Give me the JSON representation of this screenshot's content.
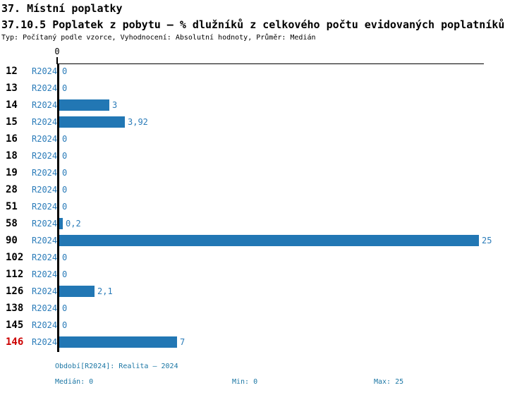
{
  "header": {
    "title": "37. Místní poplatky",
    "subtitle": "37.10.5 Poplatek z pobytu – % dlužníků z celkového počtu evidovaných poplatníků",
    "meta": "Typ: Počítaný podle vzorce, Vyhodnocení: Absolutní hodnoty, Průměr: Medián"
  },
  "chart_data": {
    "type": "bar",
    "orientation": "horizontal",
    "title": "37.10.5 Poplatek z pobytu – % dlužníků z celkového počtu evidovaných poplatníků",
    "categories": [
      "12",
      "13",
      "14",
      "15",
      "16",
      "18",
      "19",
      "28",
      "51",
      "58",
      "90",
      "102",
      "112",
      "126",
      "138",
      "145",
      "146"
    ],
    "series_label": "R2024",
    "values": [
      0,
      0,
      3,
      3.92,
      0,
      0,
      0,
      0,
      0,
      0.2,
      25,
      0,
      0,
      2.1,
      0,
      0,
      7
    ],
    "value_labels": [
      "0",
      "0",
      "3",
      "3,92",
      "0",
      "0",
      "0",
      "0",
      "0",
      "0,2",
      "25",
      "0",
      "0",
      "2,1",
      "0",
      "0",
      "7"
    ],
    "highlighted_category": "146",
    "xlim": [
      0,
      25
    ],
    "axis_tick_label": "0",
    "grid": false,
    "legend": false,
    "bar_color": "#2277B4",
    "label_color": "#2B7CB9",
    "footer_color": "#1B76A4",
    "highlight_color": "#CC0000"
  },
  "footer": {
    "period": "Období[R2024]: Realita – 2024",
    "median": "Medián: 0",
    "min": "Min: 0",
    "max": "Max: 25"
  }
}
